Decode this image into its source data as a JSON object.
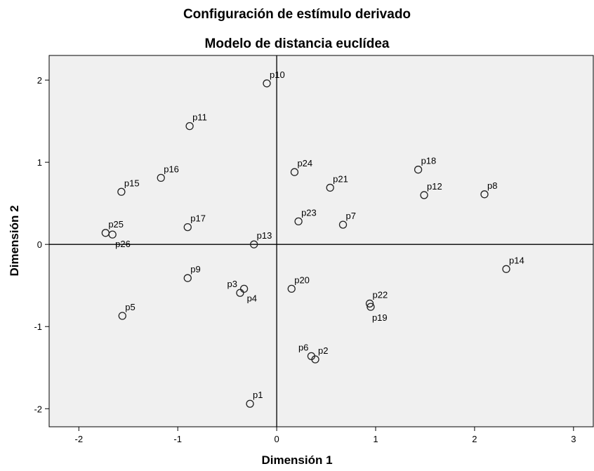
{
  "chart_data": {
    "type": "scatter",
    "title": "Configuración de estímulo derivado",
    "subtitle": "Modelo de distancia euclídea",
    "xlabel": "Dimensión 1",
    "ylabel": "Dimensión 2",
    "xlim": [
      -2.3,
      3.2
    ],
    "ylim": [
      -2.22,
      2.3
    ],
    "x_ticks": [
      -2,
      -1,
      0,
      1,
      2,
      3
    ],
    "y_ticks": [
      -2,
      -1,
      0,
      1,
      2
    ],
    "grid": false,
    "reference_lines": {
      "x": 0,
      "y": 0
    },
    "marker": "hollow-circle",
    "plot_background": "#f0f0f0",
    "points": [
      {
        "label": "p1",
        "x": -0.27,
        "y": -1.94,
        "label_pos": "above-right"
      },
      {
        "label": "p2",
        "x": 0.39,
        "y": -1.4,
        "label_pos": "above-right"
      },
      {
        "label": "p3",
        "x": -0.37,
        "y": -0.59,
        "label_pos": "above-left"
      },
      {
        "label": "p4",
        "x": -0.33,
        "y": -0.54,
        "label_pos": "below-right"
      },
      {
        "label": "p5",
        "x": -1.56,
        "y": -0.87,
        "label_pos": "above-right"
      },
      {
        "label": "p6",
        "x": 0.35,
        "y": -1.36,
        "label_pos": "above-left"
      },
      {
        "label": "p7",
        "x": 0.67,
        "y": 0.24,
        "label_pos": "above-right"
      },
      {
        "label": "p8",
        "x": 2.1,
        "y": 0.61,
        "label_pos": "above-right"
      },
      {
        "label": "p9",
        "x": -0.9,
        "y": -0.41,
        "label_pos": "above-right"
      },
      {
        "label": "p10",
        "x": -0.1,
        "y": 1.96,
        "label_pos": "above-right"
      },
      {
        "label": "p11",
        "x": -0.88,
        "y": 1.44,
        "label_pos": "above-right"
      },
      {
        "label": "p12",
        "x": 1.49,
        "y": 0.6,
        "label_pos": "above-right"
      },
      {
        "label": "p13",
        "x": -0.23,
        "y": 0.0,
        "label_pos": "above-right"
      },
      {
        "label": "p14",
        "x": 2.32,
        "y": -0.3,
        "label_pos": "above-right"
      },
      {
        "label": "p15",
        "x": -1.57,
        "y": 0.64,
        "label_pos": "above-right"
      },
      {
        "label": "p16",
        "x": -1.17,
        "y": 0.81,
        "label_pos": "above-right"
      },
      {
        "label": "p17",
        "x": -0.9,
        "y": 0.21,
        "label_pos": "above-right"
      },
      {
        "label": "p18",
        "x": 1.43,
        "y": 0.91,
        "label_pos": "above-right"
      },
      {
        "label": "p19",
        "x": 0.95,
        "y": -0.76,
        "label_pos": "below"
      },
      {
        "label": "p20",
        "x": 0.15,
        "y": -0.54,
        "label_pos": "above-right"
      },
      {
        "label": "p21",
        "x": 0.54,
        "y": 0.69,
        "label_pos": "above-right"
      },
      {
        "label": "p22",
        "x": 0.94,
        "y": -0.72,
        "label_pos": "above-right"
      },
      {
        "label": "p23",
        "x": 0.22,
        "y": 0.28,
        "label_pos": "above-right"
      },
      {
        "label": "p24",
        "x": 0.18,
        "y": 0.88,
        "label_pos": "above-right"
      },
      {
        "label": "p25",
        "x": -1.73,
        "y": 0.14,
        "label_pos": "above-right"
      },
      {
        "label": "p26",
        "x": -1.66,
        "y": 0.12,
        "label_pos": "below-right"
      }
    ]
  }
}
